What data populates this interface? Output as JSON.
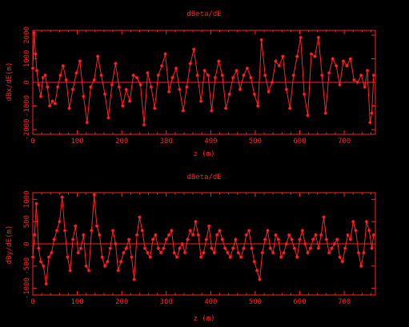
{
  "chart_data": [
    {
      "type": "line",
      "title": "dBeta/dE",
      "xlabel": "z (m)",
      "ylabel": "dBx/dE(m)",
      "xlim": [
        0,
        770
      ],
      "ylim": [
        -2200,
        2200
      ],
      "xticks": [
        0,
        100,
        200,
        300,
        400,
        500,
        600,
        700
      ],
      "xtick_labels": [
        "0",
        "100",
        "200",
        "300",
        "400",
        "500",
        "600",
        "700"
      ],
      "yticks": [
        -2000,
        -1000,
        0,
        1000,
        2000
      ],
      "ytick_labels": [
        "-2000",
        "-1000",
        "0",
        "1000",
        "2000"
      ],
      "marker": "star",
      "zero_line": true,
      "series": [
        {
          "color": "#ff2020",
          "x": [
            0,
            3,
            6,
            9,
            13,
            18,
            23,
            28,
            33,
            38,
            44,
            50,
            56,
            62,
            68,
            75,
            82,
            90,
            98,
            106,
            114,
            122,
            130,
            138,
            146,
            154,
            162,
            170,
            178,
            186,
            194,
            202,
            210,
            218,
            226,
            234,
            242,
            250,
            258,
            266,
            274,
            282,
            290,
            298,
            306,
            314,
            322,
            330,
            338,
            346,
            354,
            362,
            370,
            378,
            386,
            394,
            402,
            410,
            418,
            426,
            434,
            442,
            450,
            458,
            466,
            474,
            482,
            490,
            498,
            506,
            514,
            522,
            530,
            538,
            546,
            554,
            562,
            570,
            578,
            586,
            594,
            602,
            610,
            618,
            626,
            634,
            642,
            650,
            658,
            666,
            674,
            682,
            690,
            698,
            706,
            714,
            722,
            730,
            738,
            746,
            752,
            758,
            762,
            766
          ],
          "y": [
            600,
            2100,
            1200,
            500,
            -100,
            -600,
            200,
            300,
            -200,
            -1000,
            -800,
            -900,
            -200,
            300,
            700,
            100,
            -1100,
            -300,
            400,
            900,
            -600,
            -1700,
            -200,
            100,
            1100,
            300,
            -500,
            -1500,
            -100,
            800,
            -200,
            -1000,
            -300,
            -800,
            300,
            200,
            -100,
            -1800,
            400,
            -200,
            -1100,
            300,
            700,
            1200,
            -400,
            200,
            600,
            -300,
            -1200,
            -200,
            800,
            1400,
            300,
            -800,
            500,
            300,
            -1200,
            200,
            900,
            300,
            -1100,
            -500,
            200,
            500,
            -300,
            300,
            600,
            200,
            -500,
            -1000,
            1800,
            300,
            -400,
            0,
            900,
            700,
            1100,
            -300,
            -1100,
            300,
            1100,
            1900,
            -500,
            -1400,
            1200,
            1100,
            1900,
            300,
            -1300,
            400,
            1000,
            700,
            -100,
            900,
            700,
            1000,
            100,
            0,
            300,
            -200,
            500,
            -1700,
            -1300,
            300
          ]
        }
      ]
    },
    {
      "type": "line",
      "title": "dBeta/dE",
      "xlabel": "z (m)",
      "ylabel": "dBy/dE(m)",
      "xlim": [
        0,
        770
      ],
      "ylim": [
        -1150,
        1150
      ],
      "xticks": [
        0,
        100,
        200,
        300,
        400,
        500,
        600,
        700
      ],
      "xtick_labels": [
        "0",
        "100",
        "200",
        "300",
        "400",
        "500",
        "600",
        "700"
      ],
      "yticks": [
        -1000,
        -500,
        0,
        500,
        1000
      ],
      "ytick_labels": [
        "-1000",
        "-500",
        "0",
        "500",
        "1000"
      ],
      "marker": "star",
      "zero_line": true,
      "series": [
        {
          "color": "#ff2020",
          "x": [
            0,
            4,
            8,
            13,
            18,
            24,
            30,
            36,
            42,
            48,
            54,
            60,
            66,
            72,
            78,
            84,
            90,
            96,
            102,
            108,
            114,
            120,
            126,
            132,
            138,
            144,
            150,
            156,
            162,
            168,
            174,
            180,
            186,
            192,
            198,
            204,
            210,
            216,
            222,
            228,
            234,
            240,
            246,
            252,
            258,
            264,
            270,
            276,
            282,
            288,
            294,
            300,
            306,
            312,
            318,
            324,
            330,
            336,
            342,
            348,
            354,
            360,
            366,
            372,
            378,
            384,
            390,
            396,
            402,
            408,
            414,
            420,
            426,
            432,
            438,
            444,
            450,
            456,
            462,
            468,
            474,
            480,
            486,
            492,
            498,
            504,
            510,
            516,
            522,
            528,
            534,
            540,
            546,
            552,
            558,
            564,
            570,
            576,
            582,
            588,
            594,
            600,
            606,
            612,
            618,
            624,
            630,
            636,
            642,
            648,
            654,
            660,
            666,
            672,
            678,
            684,
            690,
            696,
            702,
            708,
            714,
            720,
            726,
            732,
            738,
            744,
            750,
            756,
            762,
            766
          ],
          "y": [
            -300,
            200,
            900,
            -100,
            -400,
            -500,
            -900,
            -300,
            -200,
            100,
            300,
            500,
            1050,
            300,
            -300,
            -600,
            100,
            400,
            -200,
            -100,
            200,
            -500,
            -600,
            300,
            1100,
            400,
            200,
            -300,
            -500,
            -400,
            -100,
            300,
            0,
            -600,
            -400,
            -200,
            -100,
            100,
            -300,
            -800,
            200,
            600,
            300,
            -100,
            -200,
            -300,
            100,
            200,
            -100,
            -200,
            -100,
            100,
            200,
            300,
            -200,
            -300,
            -100,
            0,
            -200,
            100,
            300,
            200,
            500,
            200,
            -300,
            -200,
            100,
            400,
            -100,
            -200,
            200,
            300,
            100,
            -100,
            -200,
            -300,
            -100,
            100,
            -200,
            -300,
            -100,
            200,
            300,
            -100,
            -400,
            -600,
            -800,
            -200,
            100,
            300,
            -100,
            -200,
            200,
            100,
            -300,
            -200,
            0,
            200,
            100,
            -100,
            -300,
            100,
            300,
            0,
            -200,
            -100,
            100,
            200,
            -100,
            200,
            600,
            100,
            -200,
            -100,
            0,
            100,
            -300,
            -400,
            -100,
            200,
            100,
            500,
            300,
            -200,
            -500,
            -200,
            500,
            300,
            -100,
            200
          ]
        }
      ]
    }
  ]
}
